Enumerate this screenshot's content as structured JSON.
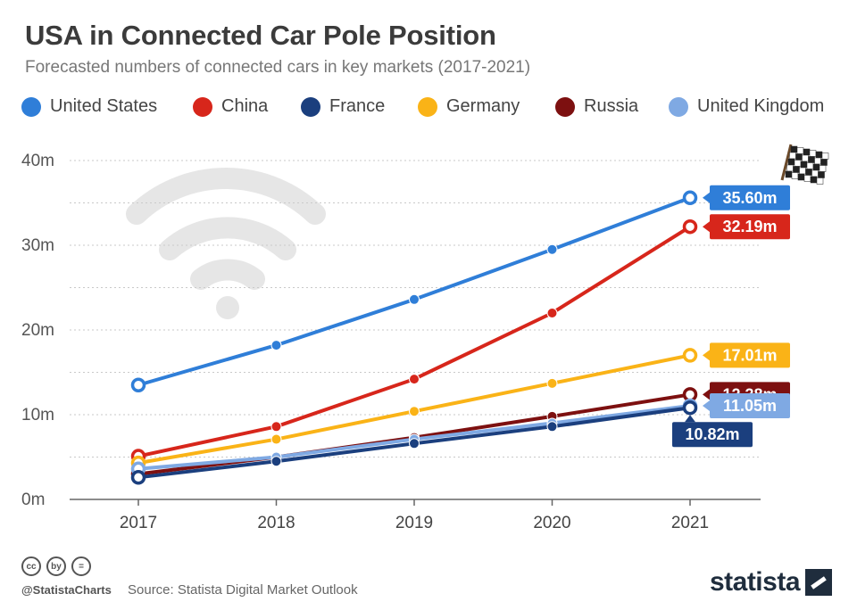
{
  "header": {
    "title": "USA in Connected Car Pole Position",
    "subtitle": "Forecasted numbers of connected cars in key markets (2017-2021)"
  },
  "legend": [
    {
      "label": "United States",
      "color": "#2f7ed8"
    },
    {
      "label": "China",
      "color": "#d7261b"
    },
    {
      "label": "France",
      "color": "#1b3f7e"
    },
    {
      "label": "Germany",
      "color": "#fab317"
    },
    {
      "label": "Russia",
      "color": "#7d1010"
    },
    {
      "label": "United Kingdom",
      "color": "#7fa9e3"
    }
  ],
  "chart_data": {
    "type": "line",
    "x": [
      "2017",
      "2018",
      "2019",
      "2020",
      "2021"
    ],
    "ylim": [
      0,
      40
    ],
    "yticks": [
      0,
      10,
      20,
      30,
      40
    ],
    "ytick_labels": [
      "0m",
      "10m",
      "20m",
      "30m",
      "40m"
    ],
    "grid": true,
    "series": [
      {
        "name": "United States",
        "color": "#2f7ed8",
        "values": [
          13.5,
          18.2,
          23.6,
          29.5,
          35.6
        ],
        "end_label": "35.60m"
      },
      {
        "name": "China",
        "color": "#d7261b",
        "values": [
          5.1,
          8.6,
          14.2,
          22.0,
          32.19
        ],
        "end_label": "32.19m"
      },
      {
        "name": "Germany",
        "color": "#fab317",
        "values": [
          4.3,
          7.1,
          10.4,
          13.7,
          17.01
        ],
        "end_label": "17.01m"
      },
      {
        "name": "Russia",
        "color": "#7d1010",
        "values": [
          3.0,
          5.0,
          7.3,
          9.8,
          12.38
        ],
        "end_label": "12.38m"
      },
      {
        "name": "United Kingdom",
        "color": "#7fa9e3",
        "values": [
          3.6,
          5.0,
          7.1,
          9.0,
          11.05
        ],
        "end_label": "11.05m"
      },
      {
        "name": "France",
        "color": "#1b3f7e",
        "values": [
          2.6,
          4.5,
          6.6,
          8.6,
          10.82
        ],
        "end_label": "10.82m"
      }
    ]
  },
  "footer": {
    "handle": "@StatistaCharts",
    "source": "Source: Statista Digital Market Outlook",
    "brand": "statista",
    "license_icons": [
      "cc",
      "by",
      "="
    ]
  }
}
